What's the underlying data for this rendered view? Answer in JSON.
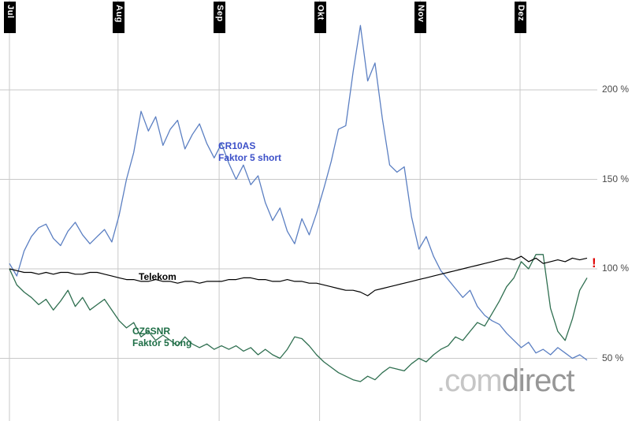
{
  "chart_data": {
    "type": "line",
    "title": "",
    "grid": true,
    "grid_color": "#c9c9c9",
    "ylim": [
      35,
      245
    ],
    "y_ticks": [
      {
        "value": 200,
        "label": "200 %"
      },
      {
        "value": 150,
        "label": "150 %"
      },
      {
        "value": 100,
        "label": "100 %"
      },
      {
        "value": 50,
        "label": "50 %"
      }
    ],
    "months": [
      {
        "label": "Jul",
        "t": 0.0
      },
      {
        "label": "Aug",
        "t": 0.188
      },
      {
        "label": "Sep",
        "t": 0.363
      },
      {
        "label": "Okt",
        "t": 0.537
      },
      {
        "label": "Nov",
        "t": 0.711
      },
      {
        "label": "Dez",
        "t": 0.884
      }
    ],
    "series": [
      {
        "id": "cr10as",
        "name": "CR10AS Faktor 5 short",
        "color": "#5b7fc2",
        "width": 1.3,
        "values": [
          103,
          96,
          110,
          118,
          123,
          125,
          117,
          113,
          121,
          126,
          119,
          114,
          118,
          122,
          115,
          130,
          150,
          165,
          188,
          177,
          185,
          169,
          178,
          183,
          167,
          175,
          181,
          170,
          162,
          170,
          159,
          150,
          158,
          147,
          152,
          137,
          127,
          134,
          121,
          114,
          128,
          119,
          131,
          145,
          160,
          178,
          180,
          210,
          236,
          205,
          215,
          184,
          158,
          154,
          157,
          129,
          111,
          118,
          107,
          99,
          94,
          89,
          84,
          88,
          79,
          74,
          71,
          69,
          64,
          60,
          56,
          59,
          53,
          55,
          52,
          56,
          53,
          50,
          52,
          49
        ]
      },
      {
        "id": "cz6snr",
        "name": "CZ6SNR Faktor 5 long",
        "color": "#2f6f50",
        "width": 1.3,
        "values": [
          100,
          91,
          87,
          84,
          80,
          83,
          77,
          82,
          88,
          79,
          84,
          77,
          80,
          83,
          77,
          71,
          67,
          70,
          62,
          65,
          60,
          63,
          60,
          57,
          62,
          58,
          56,
          58,
          55,
          57,
          55,
          57,
          54,
          56,
          52,
          55,
          52,
          50,
          55,
          62,
          61,
          57,
          52,
          48,
          45,
          42,
          40,
          38,
          37,
          40,
          38,
          42,
          45,
          44,
          43,
          47,
          50,
          48,
          52,
          55,
          57,
          62,
          60,
          65,
          70,
          68,
          75,
          82,
          90,
          95,
          104,
          100,
          108,
          108,
          78,
          65,
          60,
          72,
          88,
          95
        ]
      },
      {
        "id": "telekom",
        "name": "Telekom",
        "color": "#000000",
        "width": 1.2,
        "values": [
          100,
          99,
          98,
          98,
          97,
          98,
          97,
          98,
          98,
          97,
          97,
          98,
          98,
          97,
          96,
          95,
          94,
          94,
          93,
          93,
          94,
          93,
          93,
          92,
          93,
          93,
          92,
          93,
          93,
          93,
          94,
          94,
          95,
          95,
          94,
          94,
          93,
          93,
          94,
          93,
          93,
          92,
          92,
          91,
          90,
          89,
          88,
          88,
          87,
          85,
          88,
          89,
          90,
          91,
          92,
          93,
          94,
          95,
          96,
          97,
          98,
          99,
          100,
          101,
          102,
          103,
          104,
          105,
          106,
          105,
          107,
          104,
          106,
          103,
          104,
          105,
          104,
          106,
          105,
          106
        ]
      }
    ]
  },
  "labels": {
    "cr10as": {
      "line1": "CR10AS",
      "line2": "Faktor 5 short"
    },
    "telekom": {
      "line1": "Telekom"
    },
    "cz6snr": {
      "line1": "CZ6SNR",
      "line2": "Faktor 5 long"
    }
  },
  "alert": "!",
  "watermark": {
    "part1": ".com",
    "part2": "direct"
  }
}
